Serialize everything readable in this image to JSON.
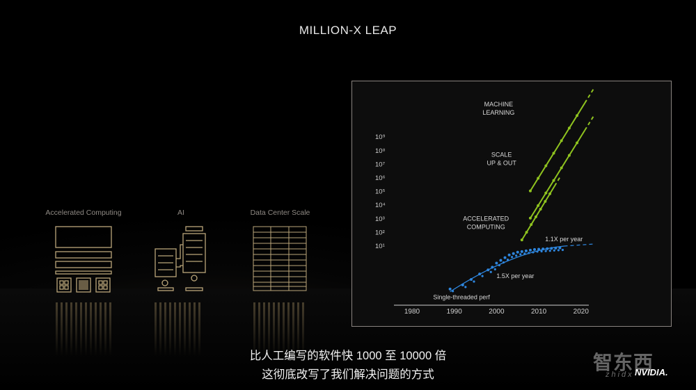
{
  "slide": {
    "title": "MILLION-X LEAP"
  },
  "categories": [
    "Accelerated Computing",
    "AI",
    "Data Center Scale"
  ],
  "subtitles": {
    "line1": "比人工编写的软件快 1000 至 10000 倍",
    "line2": "这彻底改写了我们解决问题的方式"
  },
  "watermark": {
    "brand": "智东西",
    "domain": "zhidx",
    "logo_text": "NVIDIA."
  },
  "colors": {
    "green": "#8fc31f",
    "blue": "#2e86de",
    "panel_border": "#8a8480"
  },
  "chart_data": {
    "type": "line",
    "title": "",
    "x_ticks": [
      "1980",
      "1990",
      "2000",
      "2010",
      "2020"
    ],
    "xlim": [
      1975,
      2022
    ],
    "y_ticks": [
      "10¹",
      "10²",
      "10³",
      "10⁴",
      "10⁵",
      "10⁶",
      "10⁷",
      "10⁸",
      "10⁹"
    ],
    "y_scale": "log",
    "series": [
      {
        "name": "MACHINE LEARNING",
        "color": "#8fc31f",
        "x": [
          2008,
          2023
        ],
        "y_exp": [
          5.0,
          12.5
        ]
      },
      {
        "name": "SCALE UP & OUT",
        "color": "#8fc31f",
        "x": [
          2008,
          2023
        ],
        "y_exp": [
          3.0,
          10.5
        ]
      },
      {
        "name": "ACCELERATED COMPUTING",
        "color": "#8fc31f",
        "x": [
          2006,
          2015
        ],
        "y_exp": [
          1.4,
          6.0
        ]
      },
      {
        "name": "Single-threaded perf",
        "color": "#2e86de",
        "type": "scatter",
        "x": [
          1989,
          1992,
          1994,
          1996,
          1998,
          1999,
          2000,
          2001,
          2002,
          2003,
          2004,
          2005,
          2006,
          2007,
          2008,
          2009,
          2010,
          2011,
          2012,
          2013,
          2014,
          2015
        ],
        "y_exp": [
          -2.2,
          -1.9,
          -1.5,
          -1.1,
          -0.8,
          -0.6,
          -0.3,
          -0.1,
          0.1,
          0.3,
          0.4,
          0.5,
          0.55,
          0.6,
          0.65,
          0.7,
          0.72,
          0.74,
          0.76,
          0.78,
          0.8,
          0.82
        ]
      }
    ],
    "annotations": [
      {
        "lines": [
          "MACHINE",
          "LEARNING"
        ],
        "x": 2000.5,
        "y_exp": 11.2
      },
      {
        "lines": [
          "SCALE",
          "UP & OUT"
        ],
        "x": 2001.2,
        "y_exp": 7.5
      },
      {
        "lines": [
          "ACCELERATED",
          "COMPUTING"
        ],
        "x": 1997.5,
        "y_exp": 2.8
      },
      {
        "lines": [
          "1.1X per year"
        ],
        "x": 2011.5,
        "y_exp": 1.3
      },
      {
        "lines": [
          "1.5X per year"
        ],
        "x": 2000,
        "y_exp": -1.4
      },
      {
        "lines": [
          "Single-threaded perf"
        ],
        "x": 1985,
        "y_exp": -2.95
      }
    ]
  }
}
